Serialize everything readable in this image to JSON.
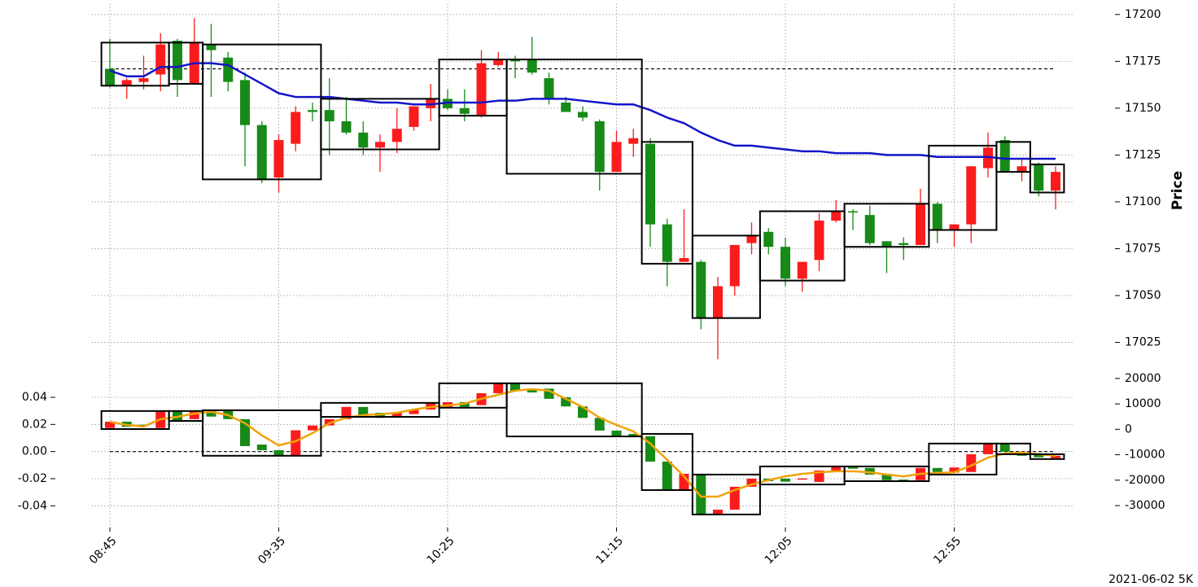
{
  "chart_data": [
    {
      "type": "candlestick",
      "ylabel": "Price",
      "ylim": [
        17007,
        17206
      ],
      "yticks": [
        17200,
        17175,
        17150,
        17125,
        17100,
        17075,
        17050,
        17025
      ],
      "grid": true,
      "up_color": "#178a17",
      "down_color": "#fa1c1c",
      "open": [
        17162,
        17165,
        17166,
        17184,
        17165,
        17185,
        17181,
        17164,
        17141,
        17112,
        17133,
        17148,
        17148,
        17143,
        17137,
        17129,
        17132,
        17139,
        17151,
        17155,
        17150,
        17147,
        17174,
        17176,
        17175,
        17169,
        17155,
        17148,
        17145,
        17116,
        17132,
        17134,
        17088,
        17068,
        17070,
        17038,
        17055,
        17077,
        17082,
        17076,
        17059,
        17068,
        17090,
        17095,
        17095,
        17078,
        17076,
        17077,
        17099,
        17085,
        17088,
        17119,
        17129,
        17116,
        17119,
        17106,
        17116
      ],
      "high": [
        17187,
        17166,
        17178,
        17190,
        17187,
        17198,
        17195,
        17180,
        17169,
        17143,
        17136,
        17151,
        17153,
        17166,
        17156,
        17143,
        17136,
        17150,
        17151,
        17163,
        17160,
        17160,
        17181,
        17180,
        17178,
        17188,
        17169,
        17156,
        17151,
        17144,
        17138,
        17139,
        17134,
        17091,
        17096,
        17069,
        17060,
        17077,
        17089,
        17086,
        17081,
        17068,
        17094,
        17101,
        17096,
        17098,
        17079,
        17081,
        17107,
        17100,
        17088,
        17119,
        17137,
        17135,
        17123,
        17121,
        17119
      ],
      "low": [
        17161,
        17155,
        17160,
        17159,
        17156,
        17163,
        17156,
        17159,
        17119,
        17110,
        17105,
        17127,
        17143,
        17125,
        17136,
        17125,
        17116,
        17126,
        17138,
        17143,
        17149,
        17143,
        17145,
        17172,
        17166,
        17168,
        17152,
        17148,
        17143,
        17106,
        17116,
        17124,
        17076,
        17055,
        17068,
        17032,
        17016,
        17050,
        17072,
        17072,
        17055,
        17052,
        17063,
        17089,
        17085,
        17077,
        17062,
        17069,
        17077,
        17078,
        17076,
        17078,
        17113,
        17116,
        17111,
        17103,
        17096
      ],
      "close": [
        17171,
        17162,
        17164,
        17168,
        17186,
        17163,
        17184,
        17177,
        17165,
        17141,
        17113,
        17131,
        17149,
        17149,
        17143,
        17137,
        17129,
        17132,
        17140,
        17150,
        17155,
        17150,
        17146,
        17173,
        17176,
        17176,
        17166,
        17153,
        17148,
        17143,
        17116,
        17131,
        17131,
        17088,
        17068,
        17068,
        17038,
        17055,
        17078,
        17084,
        17076,
        17059,
        17069,
        17090,
        17095,
        17093,
        17079,
        17078,
        17077,
        17099,
        17085,
        17088,
        17118,
        17133,
        17116,
        17120,
        17106
      ],
      "line": {
        "color": "#1414c8",
        "values": [
          17170,
          17167,
          17167,
          17172,
          17172,
          17174,
          17174,
          17173,
          17168,
          17163,
          17158,
          17156,
          17156,
          17156,
          17155,
          17154,
          17153,
          17153,
          17152,
          17152,
          17153,
          17153,
          17153,
          17154,
          17154,
          17155,
          17155,
          17155,
          17154,
          17153,
          17152,
          17152,
          17149,
          17145,
          17142,
          17137,
          17133,
          17130,
          17130,
          17129,
          17128,
          17127,
          17127,
          17126,
          17126,
          17126,
          17125,
          17125,
          17125,
          17124,
          17124,
          17124,
          17124,
          17123,
          17123,
          17123,
          17123
        ]
      },
      "hline": 17171,
      "boxes": [
        {
          "start": 0,
          "end": 3,
          "high": 17185,
          "low": 17162
        },
        {
          "start": 4,
          "end": 5,
          "high": 17185,
          "low": 17163
        },
        {
          "start": 6,
          "end": 12,
          "high": 17184,
          "low": 17112
        },
        {
          "start": 13,
          "end": 19,
          "high": 17155,
          "low": 17128
        },
        {
          "start": 20,
          "end": 23,
          "high": 17176,
          "low": 17146
        },
        {
          "start": 24,
          "end": 31,
          "high": 17176,
          "low": 17115
        },
        {
          "start": 32,
          "end": 34,
          "high": 17132,
          "low": 17067
        },
        {
          "start": 35,
          "end": 38,
          "high": 17082,
          "low": 17038
        },
        {
          "start": 39,
          "end": 43,
          "high": 17095,
          "low": 17058
        },
        {
          "start": 44,
          "end": 48,
          "high": 17099,
          "low": 17076
        },
        {
          "start": 49,
          "end": 52,
          "high": 17130,
          "low": 17085
        },
        {
          "start": 53,
          "end": 54,
          "high": 17132,
          "low": 17116
        },
        {
          "start": 55,
          "end": 56,
          "high": 17120,
          "low": 17105
        }
      ]
    },
    {
      "type": "candlestick",
      "axis": "y2",
      "categories": [
        "08:45",
        null,
        null,
        null,
        null,
        null,
        null,
        null,
        null,
        null,
        "09:35",
        null,
        null,
        null,
        null,
        null,
        null,
        null,
        null,
        null,
        "10:25",
        null,
        null,
        null,
        null,
        null,
        null,
        null,
        null,
        null,
        "11:15",
        null,
        null,
        null,
        null,
        null,
        null,
        null,
        null,
        null,
        "12:05",
        null,
        null,
        null,
        null,
        null,
        null,
        null,
        null,
        null,
        "12:55",
        null,
        null,
        null,
        null,
        null,
        null
      ],
      "ylim": [
        -0.056,
        0.055
      ],
      "yticks": [
        0.04,
        0.02,
        {
          "value": 0,
          "label": "0.00"
        },
        -0.02,
        -0.04
      ],
      "y2lim": [
        -38650,
        20600
      ],
      "y2ticks": [
        20000,
        10000,
        0,
        -10000,
        -20000,
        -30000
      ],
      "grid": true,
      "up_color": "#178a17",
      "down_color": "#fa1c1c",
      "open": [
        3000,
        1000,
        1500,
        7200,
        3000,
        7200,
        5000,
        4000,
        -6600,
        -8200,
        -10400,
        -400,
        1500,
        4000,
        8800,
        5600,
        4500,
        6500,
        7800,
        10400,
        10700,
        8800,
        14200,
        18400,
        15000,
        14500,
        12000,
        9000,
        4500,
        -500,
        -2700,
        -2700,
        -12700,
        -24000,
        -17500,
        -33500,
        -31600,
        -22600,
        -19400,
        -20400,
        -20600,
        -19300,
        -16200,
        -14300,
        -15500,
        -17800,
        -20000,
        -20000,
        -15200,
        -16800,
        -15000,
        -9800,
        -5600,
        -8800,
        -10400,
        -11000,
        -10400
      ],
      "close": [
        500,
        3000,
        1800,
        500,
        7200,
        4000,
        7200,
        7200,
        4000,
        -6000,
        -8200,
        -10400,
        -400,
        1500,
        4000,
        8800,
        6500,
        5000,
        6000,
        7800,
        8800,
        10700,
        9500,
        14200,
        18400,
        16000,
        16000,
        12600,
        9000,
        4500,
        -500,
        -1800,
        -2700,
        -12700,
        -24000,
        -17500,
        -33500,
        -31600,
        -22600,
        -19400,
        -19400,
        -19500,
        -20700,
        -16200,
        -14300,
        -15200,
        -17500,
        -19800,
        -20000,
        -15200,
        -17000,
        -16800,
        -9800,
        -5600,
        -9000,
        -10000,
        -11400
      ],
      "line": {
        "color": "#f0a30a",
        "axis": "y2",
        "values": [
          3000,
          1700,
          1100,
          4000,
          4900,
          6200,
          6900,
          5600,
          2400,
          -2400,
          -6300,
          -4700,
          -1500,
          2400,
          4600,
          5600,
          5900,
          6500,
          7800,
          8800,
          9400,
          10100,
          12000,
          13600,
          15200,
          15800,
          15200,
          12000,
          8800,
          4600,
          1700,
          -800,
          -5600,
          -12000,
          -18500,
          -26500,
          -26500,
          -23900,
          -21700,
          -20000,
          -18500,
          -17500,
          -16900,
          -16500,
          -16500,
          -16900,
          -17800,
          -18500,
          -17500,
          -17200,
          -16900,
          -14300,
          -11100,
          -9500,
          -9200,
          -9800,
          -10400
        ]
      },
      "hline": 0,
      "boxes": [
        {
          "start": 0,
          "end": 3,
          "high": 7200,
          "low": 100
        },
        {
          "start": 4,
          "end": 5,
          "high": 7200,
          "low": 3300
        },
        {
          "start": 6,
          "end": 12,
          "high": 7500,
          "low": -10400
        },
        {
          "start": 13,
          "end": 19,
          "high": 10400,
          "low": 4900
        },
        {
          "start": 20,
          "end": 23,
          "high": 18100,
          "low": 8500
        },
        {
          "start": 24,
          "end": 31,
          "high": 18100,
          "low": -2800
        },
        {
          "start": 32,
          "end": 34,
          "high": -1800,
          "low": -23900
        },
        {
          "start": 35,
          "end": 38,
          "high": -17800,
          "low": -33500
        },
        {
          "start": 39,
          "end": 43,
          "high": -14600,
          "low": -21700
        },
        {
          "start": 44,
          "end": 48,
          "high": -14600,
          "low": -20400
        },
        {
          "start": 49,
          "end": 52,
          "high": -5600,
          "low": -17800
        },
        {
          "start": 53,
          "end": 54,
          "high": -5600,
          "low": -9800
        },
        {
          "start": 55,
          "end": 56,
          "high": -9800,
          "low": -11700
        }
      ],
      "annotation": "2021-06-02 5K"
    }
  ]
}
